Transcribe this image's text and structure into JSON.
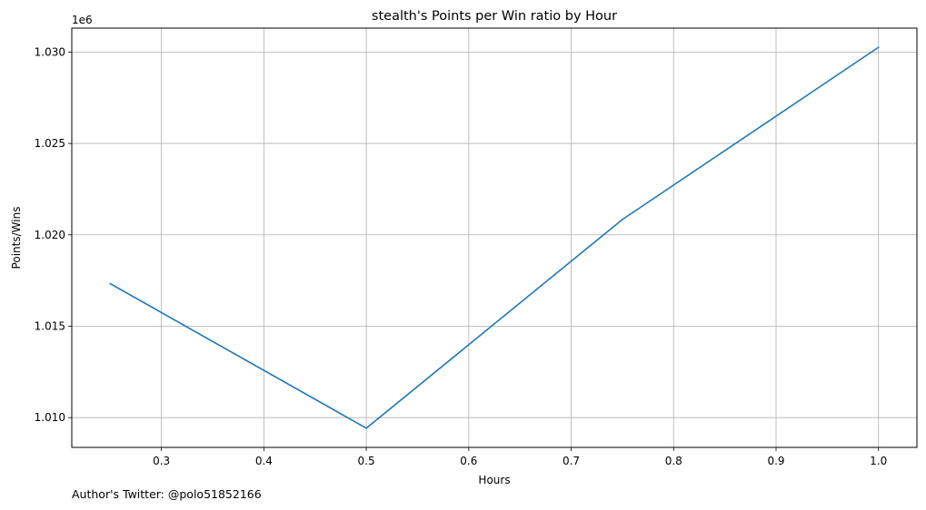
{
  "chart_data": {
    "type": "line",
    "title": "stealth's Points per Win ratio by Hour",
    "xlabel": "Hours",
    "ylabel": "Points/Wins",
    "y_offset_label": "1e6",
    "x": [
      0.25,
      0.5,
      0.75,
      1.0
    ],
    "series": [
      {
        "values": [
          1017330,
          1009420,
          1020840,
          1030260
        ],
        "color": "#1f77b4"
      }
    ],
    "xlim": [
      0.2125,
      1.0375
    ],
    "ylim": [
      1008370,
      1031310
    ],
    "x_ticks": [
      0.3,
      0.4,
      0.5,
      0.6,
      0.7,
      0.8,
      0.9,
      1.0
    ],
    "x_tick_labels": [
      "0.3",
      "0.4",
      "0.5",
      "0.6",
      "0.7",
      "0.8",
      "0.9",
      "1.0"
    ],
    "y_ticks": [
      1010000,
      1015000,
      1020000,
      1025000,
      1030000
    ],
    "y_tick_labels": [
      "1.010",
      "1.015",
      "1.020",
      "1.025",
      "1.030"
    ],
    "grid": true
  },
  "footer": {
    "author_text": "Author's Twitter: @polo51852166"
  }
}
